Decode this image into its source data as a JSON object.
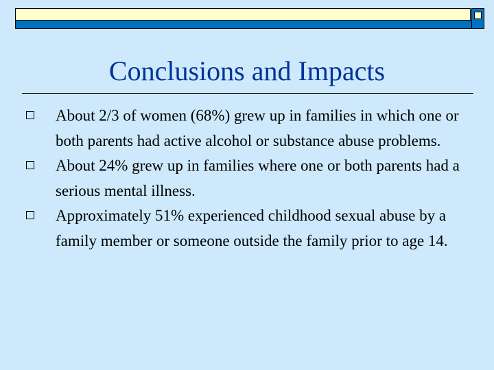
{
  "slide": {
    "title": "Conclusions and Impacts",
    "bullets": [
      {
        "text": "About 2/3 of women (68%) grew up in families in which one or both parents had active alcohol or substance abuse problems."
      },
      {
        "text": "About 24% grew up in families where one or both parents had a serious mental illness."
      },
      {
        "text": "Approximately 51% experienced childhood sexual abuse by a family member or someone outside the family prior to age 14."
      }
    ]
  },
  "colors": {
    "background": "#cde9fb",
    "title": "#003399",
    "accent_blue": "#0070c0",
    "accent_yellow": "#ffffcc"
  },
  "icons": {
    "bullet": "hollow-square-bullet-icon"
  }
}
